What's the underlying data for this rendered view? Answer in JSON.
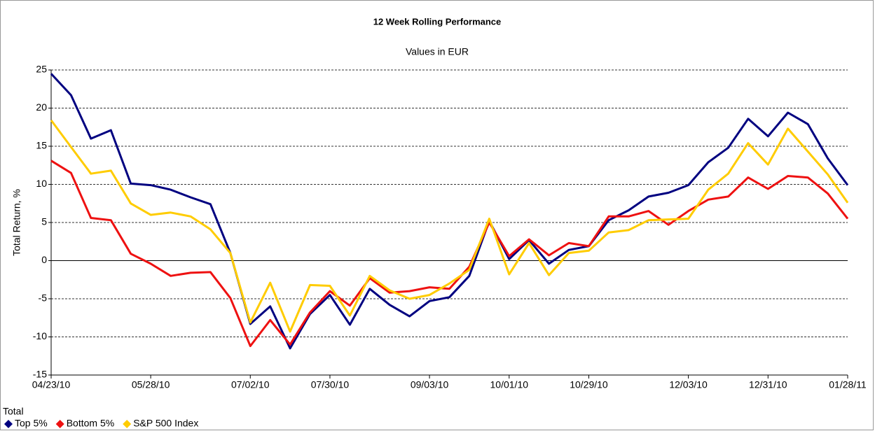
{
  "chart_data": {
    "type": "line",
    "title": "12 Week Rolling Performance",
    "subtitle": "Values in EUR",
    "y_label": "Total Return, %",
    "legend_title": "Total",
    "legend": "bottom-left",
    "grid": true,
    "categories": [
      "04/23/10",
      null,
      null,
      null,
      null,
      "05/28/10",
      null,
      null,
      null,
      null,
      "07/02/10",
      null,
      null,
      null,
      "07/30/10",
      null,
      null,
      null,
      null,
      "09/03/10",
      null,
      null,
      null,
      "10/01/10",
      null,
      null,
      null,
      "10/29/10",
      null,
      null,
      null,
      null,
      "12/03/10",
      null,
      null,
      null,
      "12/31/10",
      null,
      null,
      null,
      "01/28/11"
    ],
    "ylim": [
      -15,
      25
    ],
    "yticks": [
      -15,
      -10,
      -5,
      0,
      5,
      10,
      15,
      20,
      25
    ],
    "series": [
      {
        "name": "Top 5%",
        "color": "#000080",
        "values": [
          24.5,
          21.7,
          16,
          17.1,
          10.1,
          9.9,
          9.3,
          8.3,
          7.4,
          1,
          -8.3,
          -6,
          -11.5,
          -7,
          -4.5,
          -8.4,
          -3.7,
          -5.8,
          -7.3,
          -5.3,
          -4.8,
          -2,
          5.2,
          0.2,
          2.7,
          -0.4,
          1.4,
          1.9,
          5.3,
          6.6,
          8.4,
          8.9,
          9.9,
          12.9,
          14.8,
          18.6,
          16.3,
          19.4,
          17.9,
          13.4,
          9.9
        ]
      },
      {
        "name": "Bottom 5%",
        "color": "#ee1111",
        "values": [
          13.1,
          11.5,
          5.6,
          5.3,
          0.9,
          -0.4,
          -2,
          -1.6,
          -1.5,
          -4.9,
          -11.2,
          -7.8,
          -11,
          -6.8,
          -4,
          -5.9,
          -2.3,
          -4.2,
          -4,
          -3.5,
          -3.7,
          -0.8,
          5,
          0.6,
          2.8,
          0.7,
          2.3,
          1.9,
          5.8,
          5.8,
          6.5,
          4.7,
          6.5,
          8,
          8.4,
          10.9,
          9.4,
          11.1,
          10.9,
          8.8,
          5.5
        ]
      },
      {
        "name": "S&P 500 Index",
        "color": "#ffcc00",
        "values": [
          18.4,
          14.9,
          11.4,
          11.8,
          7.5,
          6,
          6.3,
          5.8,
          4.1,
          1,
          -8.1,
          -2.9,
          -9.3,
          -3.2,
          -3.3,
          -7.2,
          -2,
          -3.9,
          -5,
          -4.5,
          -3,
          -1.2,
          5.5,
          -1.8,
          2.3,
          -1.9,
          1,
          1.3,
          3.7,
          4,
          5.3,
          5.4,
          5.5,
          9.3,
          11.4,
          15.4,
          12.6,
          17.3,
          14.3,
          11.3,
          7.6
        ]
      }
    ]
  }
}
